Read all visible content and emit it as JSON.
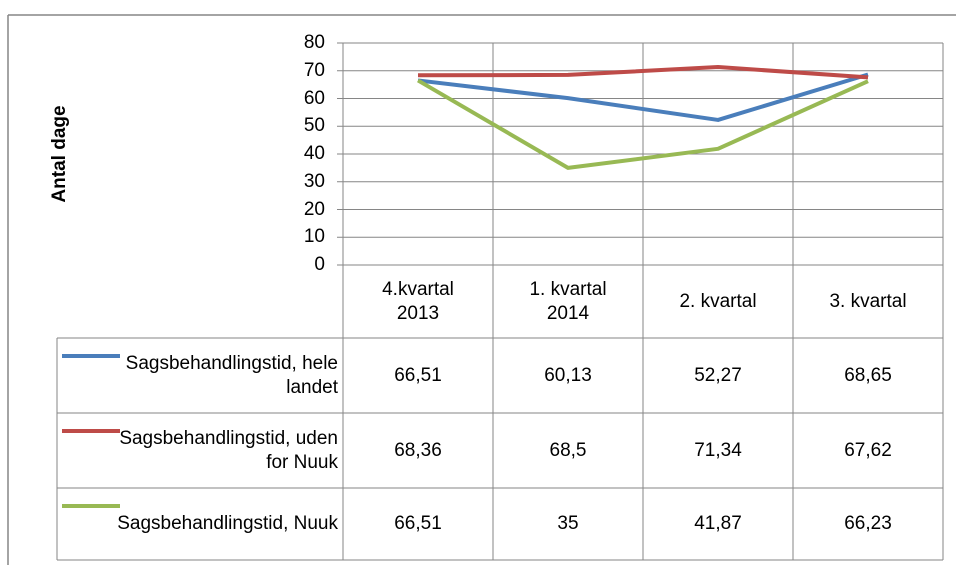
{
  "chart_data": {
    "type": "line",
    "y_axis_label": "Antal dage",
    "categories": [
      "4.kvartal 2013",
      "1. kvartal 2014",
      "2. kvartal",
      "3. kvartal"
    ],
    "series": [
      {
        "name": "Sagsbehandlingstid, hele landet",
        "color": "#4a7ebb",
        "values": [
          66.51,
          60.13,
          52.27,
          68.65
        ],
        "value_labels": [
          "66,51",
          "60,13",
          "52,27",
          "68,65"
        ]
      },
      {
        "name": "Sagsbehandlingstid, uden for Nuuk",
        "color": "#be4b48",
        "values": [
          68.36,
          68.5,
          71.34,
          67.62
        ],
        "value_labels": [
          "68,36",
          "68,5",
          "71,34",
          "67,62"
        ]
      },
      {
        "name": "Sagsbehandlingstid, Nuuk",
        "color": "#98b954",
        "values": [
          66.51,
          35,
          41.87,
          66.23
        ],
        "value_labels": [
          "66,51",
          "35",
          "41,87",
          "66,23"
        ]
      }
    ],
    "ylim": [
      0,
      80
    ],
    "yticks": [
      0,
      10,
      20,
      30,
      40,
      50,
      60,
      70,
      80
    ],
    "grid": true
  }
}
